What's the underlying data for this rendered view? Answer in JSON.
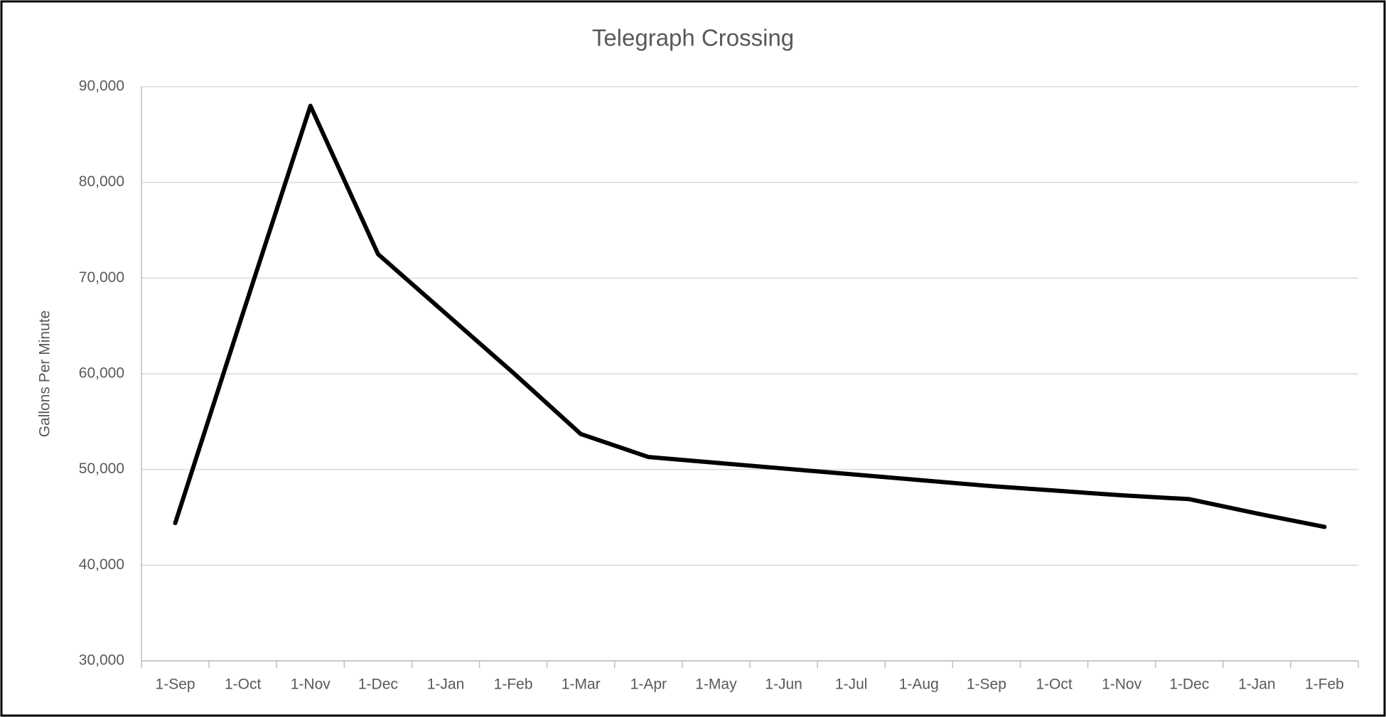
{
  "chart_data": {
    "type": "line",
    "title": "Telegraph Crossing",
    "y_label": "Gallons Per Minute",
    "categories": [
      "1-Sep",
      "1-Oct",
      "1-Nov",
      "1-Dec",
      "1-Jan",
      "1-Feb",
      "1-Mar",
      "1-Apr",
      "1-May",
      "1-Jun",
      "1-Jul",
      "1-Aug",
      "1-Sep",
      "1-Oct",
      "1-Nov",
      "1-Dec",
      "1-Jan",
      "1-Feb"
    ],
    "series": [
      {
        "name": "Gallons Per Minute",
        "color": "#000000",
        "values": [
          44400,
          66300,
          88000,
          72500,
          66300,
          60100,
          53700,
          51300,
          50700,
          50100,
          49500,
          48900,
          48300,
          47800,
          47300,
          46900,
          45400,
          44000
        ]
      }
    ],
    "ylim": [
      30000,
      90000
    ],
    "yticks": [
      {
        "value": 30000,
        "label": "30,000"
      },
      {
        "value": 40000,
        "label": "40,000"
      },
      {
        "value": 50000,
        "label": "50,000"
      },
      {
        "value": 60000,
        "label": "60,000"
      },
      {
        "value": 70000,
        "label": "70,000"
      },
      {
        "value": 80000,
        "label": "80,000"
      },
      {
        "value": 90000,
        "label": "90,000"
      }
    ],
    "grid": true
  }
}
